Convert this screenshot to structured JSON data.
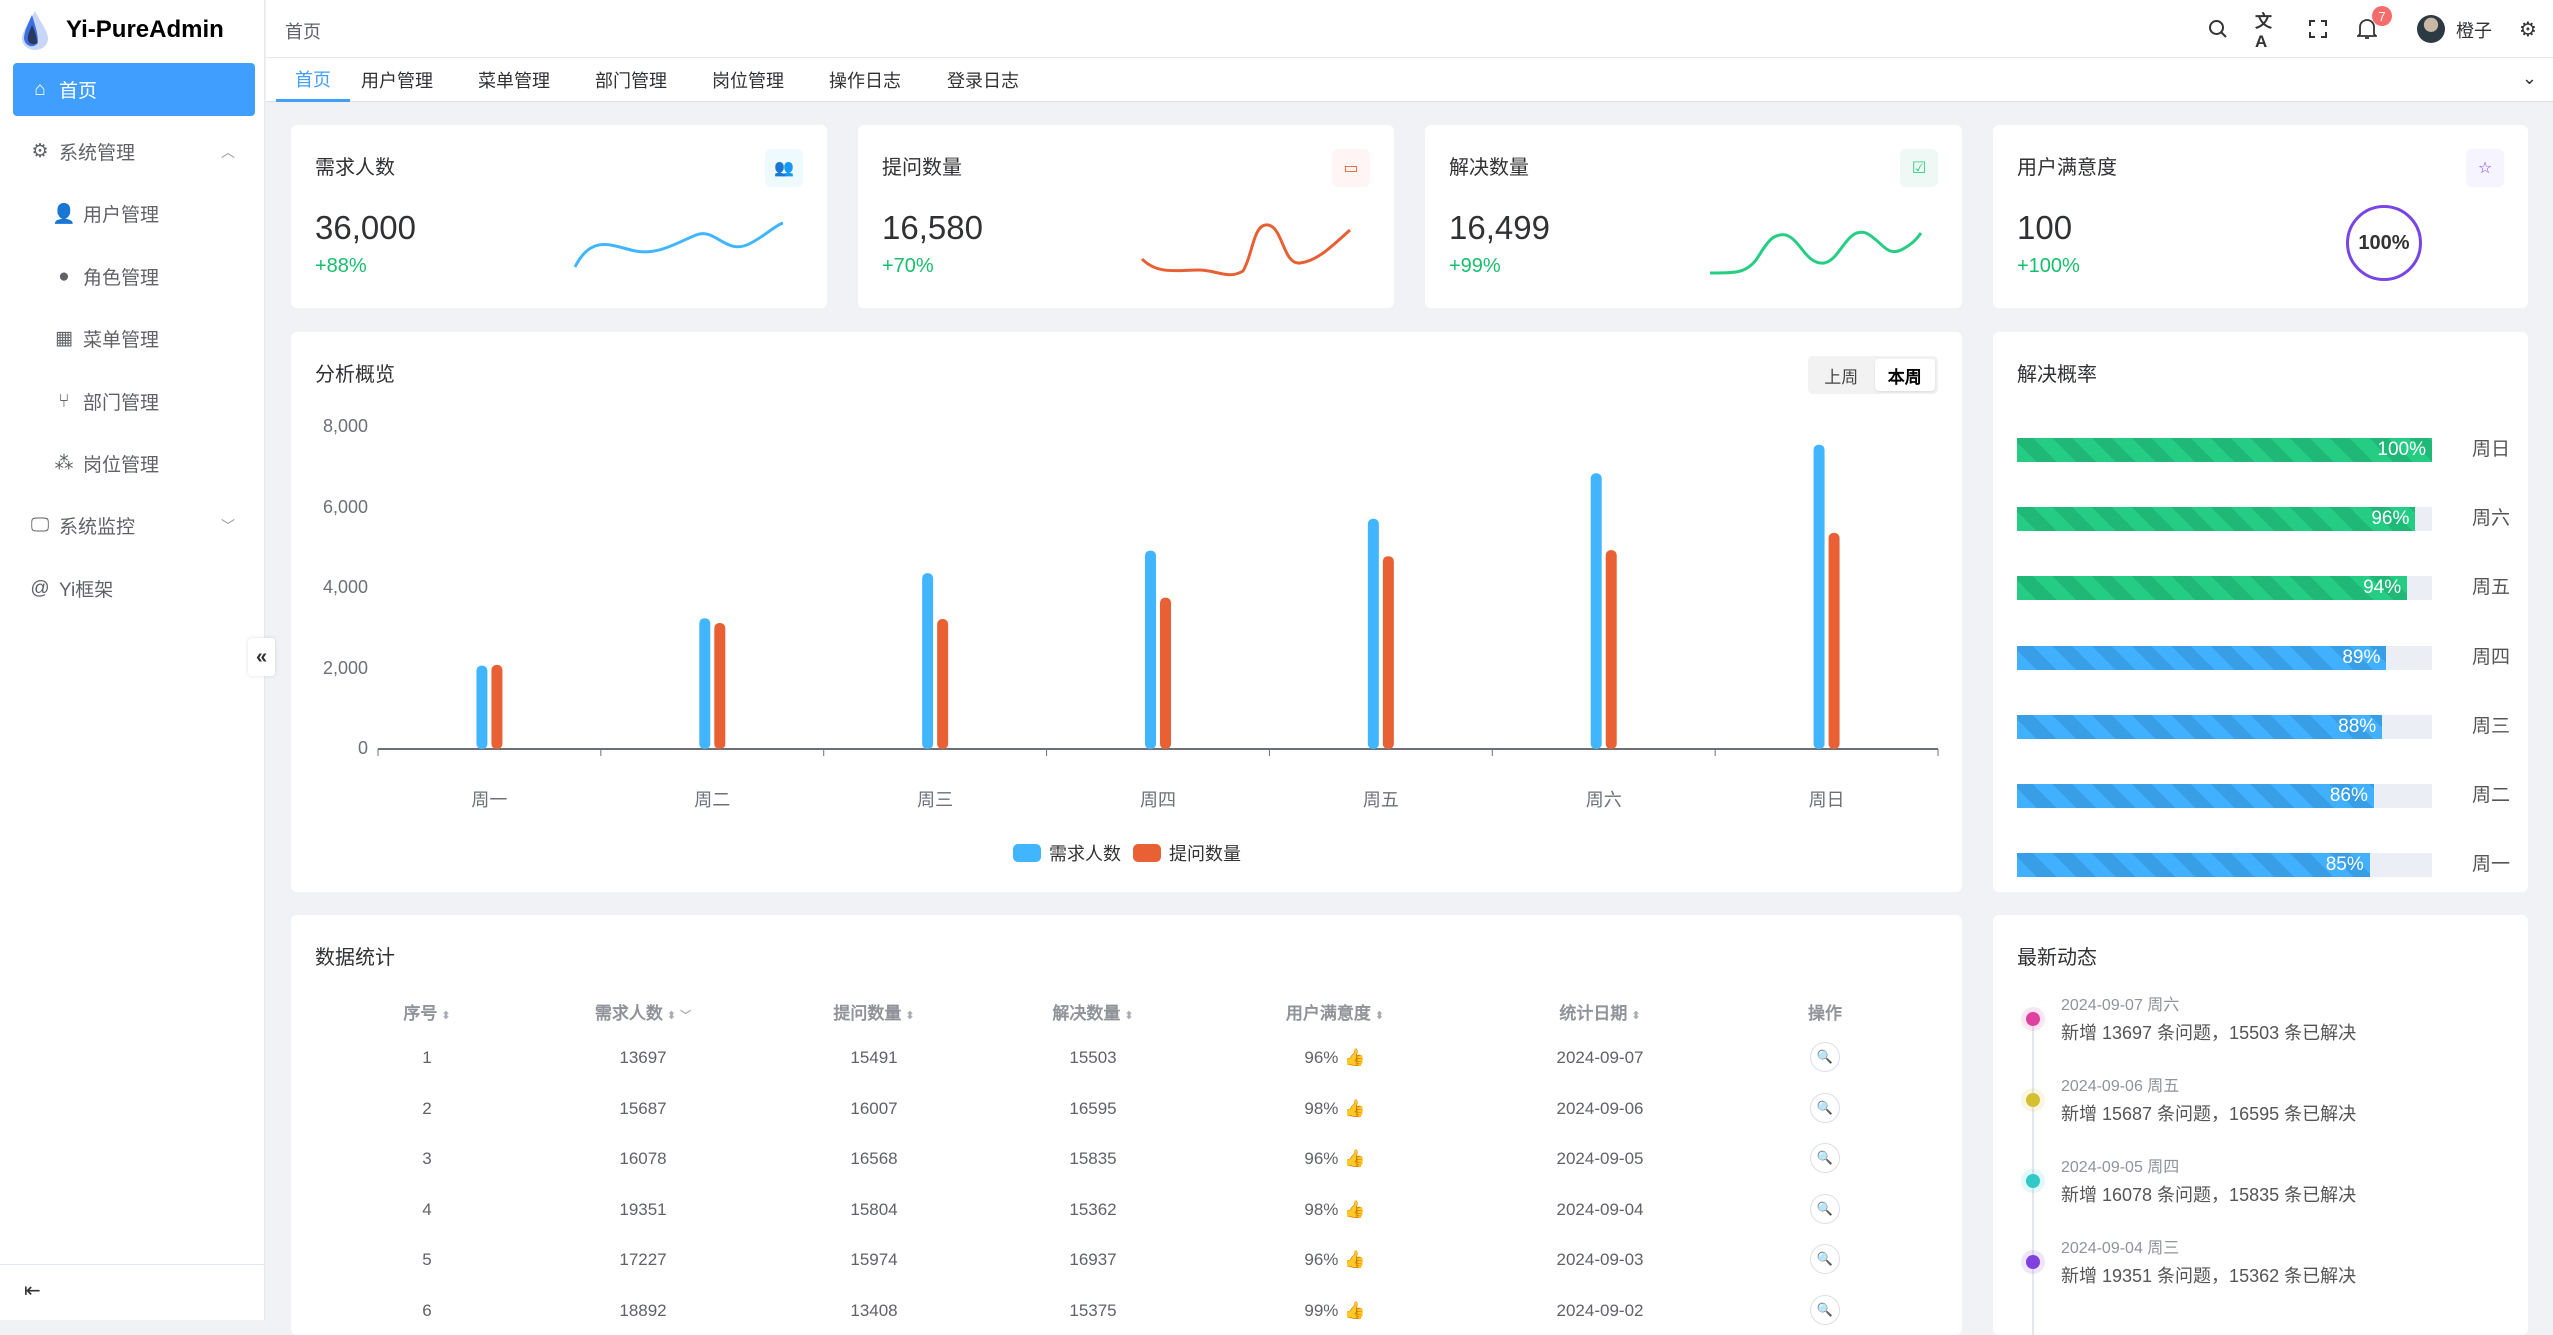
{
  "app": {
    "title": "Yi-PureAdmin"
  },
  "sidebar": {
    "items": [
      {
        "label": "首页",
        "icon": "home-icon",
        "active": true
      },
      {
        "label": "系统管理",
        "icon": "gear-icon",
        "expanded": true
      },
      {
        "label": "用户管理",
        "icon": "user-icon"
      },
      {
        "label": "角色管理",
        "icon": "role-icon"
      },
      {
        "label": "菜单管理",
        "icon": "grid-icon"
      },
      {
        "label": "部门管理",
        "icon": "branch-icon"
      },
      {
        "label": "岗位管理",
        "icon": "nodes-icon"
      },
      {
        "label": "系统监控",
        "icon": "monitor-icon",
        "expanded": false
      },
      {
        "label": "Yi框架",
        "icon": "at-icon"
      }
    ]
  },
  "header": {
    "breadcrumb": "首页",
    "notifications": "7",
    "username": "橙子"
  },
  "tabs": [
    "首页",
    "用户管理",
    "菜单管理",
    "部门管理",
    "岗位管理",
    "操作日志",
    "登录日志"
  ],
  "cards": [
    {
      "title": "需求人数",
      "value": "36,000",
      "percent": "+88%",
      "color": "#41b6ff"
    },
    {
      "title": "提问数量",
      "value": "16,580",
      "percent": "+70%",
      "color": "#e85f33"
    },
    {
      "title": "解决数量",
      "value": "16,499",
      "percent": "+99%",
      "color": "#26ce83"
    },
    {
      "title": "用户满意度",
      "value": "100",
      "percent": "+100%",
      "color": "#7846e5",
      "gauge": "100%"
    }
  ],
  "overview": {
    "title": "分析概览",
    "toggle": [
      "上周",
      "本周"
    ],
    "selected": "本周"
  },
  "chart_data": {
    "type": "bar",
    "categories": [
      "周一",
      "周二",
      "周三",
      "周四",
      "周五",
      "周六",
      "周日"
    ],
    "series": [
      {
        "name": "需求人数",
        "color": "#41b6ff",
        "values": [
          2070,
          3250,
          4370,
          4930,
          5720,
          6850,
          7560
        ]
      },
      {
        "name": "提问数量",
        "color": "#e86033",
        "values": [
          2090,
          3130,
          3230,
          3760,
          4790,
          4940,
          5370
        ]
      }
    ],
    "yticks": [
      "0",
      "2,000",
      "4,000",
      "6,000",
      "8,000"
    ],
    "ylim": [
      0,
      8000
    ],
    "legend": "bottom",
    "grid": false
  },
  "resolve": {
    "title": "解决概率",
    "rows": [
      {
        "day": "周日",
        "value": 100,
        "label": "100%",
        "color": "green"
      },
      {
        "day": "周六",
        "value": 96,
        "label": "96%",
        "color": "green"
      },
      {
        "day": "周五",
        "value": 94,
        "label": "94%",
        "color": "green"
      },
      {
        "day": "周四",
        "value": 89,
        "label": "89%",
        "color": "blue"
      },
      {
        "day": "周三",
        "value": 88,
        "label": "88%",
        "color": "blue"
      },
      {
        "day": "周二",
        "value": 86,
        "label": "86%",
        "color": "blue"
      },
      {
        "day": "周一",
        "value": 85,
        "label": "85%",
        "color": "blue"
      }
    ]
  },
  "table": {
    "title": "数据统计",
    "columns": [
      "序号",
      "需求人数",
      "提问数量",
      "解决数量",
      "用户满意度",
      "统计日期",
      "操作"
    ],
    "rows": [
      [
        "1",
        "13697",
        "15491",
        "15503",
        "96%",
        "2024-09-07"
      ],
      [
        "2",
        "15687",
        "16007",
        "16595",
        "98%",
        "2024-09-06"
      ],
      [
        "3",
        "16078",
        "16568",
        "15835",
        "96%",
        "2024-09-05"
      ],
      [
        "4",
        "19351",
        "15804",
        "15362",
        "98%",
        "2024-09-04"
      ],
      [
        "5",
        "17227",
        "15974",
        "16937",
        "96%",
        "2024-09-03"
      ],
      [
        "6",
        "18892",
        "13408",
        "15375",
        "99%",
        "2024-09-02"
      ]
    ]
  },
  "timeline": {
    "title": "最新动态",
    "items": [
      {
        "date": "2024-09-07 周六",
        "text": "新增 13697 条问题，15503 条已解决",
        "color": "#e040a0"
      },
      {
        "date": "2024-09-06 周五",
        "text": "新增 15687 条问题，16595 条已解决",
        "color": "#d4c030"
      },
      {
        "date": "2024-09-05 周四",
        "text": "新增 16078 条问题，15835 条已解决",
        "color": "#30c8c8"
      },
      {
        "date": "2024-09-04 周三",
        "text": "新增 19351 条问题，15362 条已解决",
        "color": "#8040e0"
      }
    ]
  }
}
